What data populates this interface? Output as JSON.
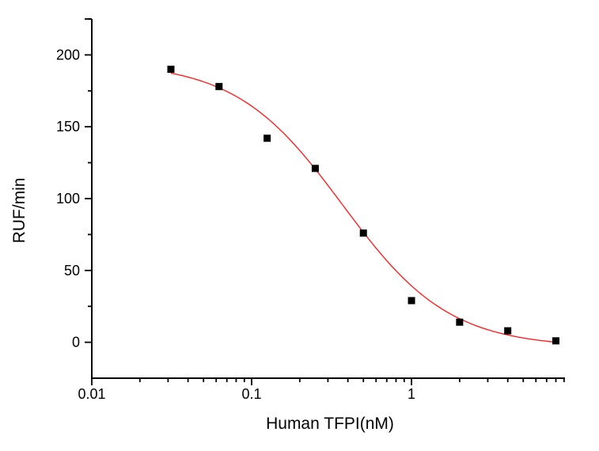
{
  "figure": {
    "background_color": "#ffffff",
    "axis_color": "#000000"
  },
  "chart_data": {
    "type": "scatter",
    "title": "",
    "xlabel": "Human TFPI(nM)",
    "ylabel": "RUF/min",
    "x_scale": "log",
    "y_scale": "linear",
    "xlim": [
      0.01,
      9.12
    ],
    "ylim": [
      -25,
      225
    ],
    "grid": false,
    "legend": "none",
    "x_major_ticks": [
      {
        "value": 0.01,
        "label": "0.01"
      },
      {
        "value": 0.1,
        "label": "0.1"
      },
      {
        "value": 1,
        "label": "1"
      }
    ],
    "x_minor_ticks": [
      0.02,
      0.03,
      0.04,
      0.05,
      0.06,
      0.07,
      0.08,
      0.09,
      0.2,
      0.3,
      0.4,
      0.5,
      0.6,
      0.7,
      0.8,
      0.9,
      2,
      3,
      4,
      5,
      6,
      7,
      8,
      9
    ],
    "y_major_ticks": [
      {
        "value": 0,
        "label": "0"
      },
      {
        "value": 50,
        "label": "50"
      },
      {
        "value": 100,
        "label": "100"
      },
      {
        "value": 150,
        "label": "150"
      },
      {
        "value": 200,
        "label": "200"
      }
    ],
    "y_minor_ticks": [
      25,
      75,
      125,
      175,
      225
    ],
    "series": [
      {
        "name": "measured-data",
        "kind": "scatter",
        "marker": "square",
        "marker_color": "#000000",
        "points": [
          {
            "x": 0.03125,
            "y": 190
          },
          {
            "x": 0.0625,
            "y": 178
          },
          {
            "x": 0.125,
            "y": 142
          },
          {
            "x": 0.25,
            "y": 121
          },
          {
            "x": 0.5,
            "y": 76
          },
          {
            "x": 1,
            "y": 29
          },
          {
            "x": 2,
            "y": 14
          },
          {
            "x": 4,
            "y": 8
          },
          {
            "x": 8,
            "y": 1
          }
        ]
      },
      {
        "name": "logistic-fit-curve",
        "kind": "curve",
        "line_color": "#ff2222",
        "model": "logistic4",
        "params": {
          "top": 195,
          "bottom": -3.5,
          "ic50": 0.37,
          "hill": 1.3
        },
        "x_range": [
          0.03125,
          8
        ]
      }
    ]
  }
}
